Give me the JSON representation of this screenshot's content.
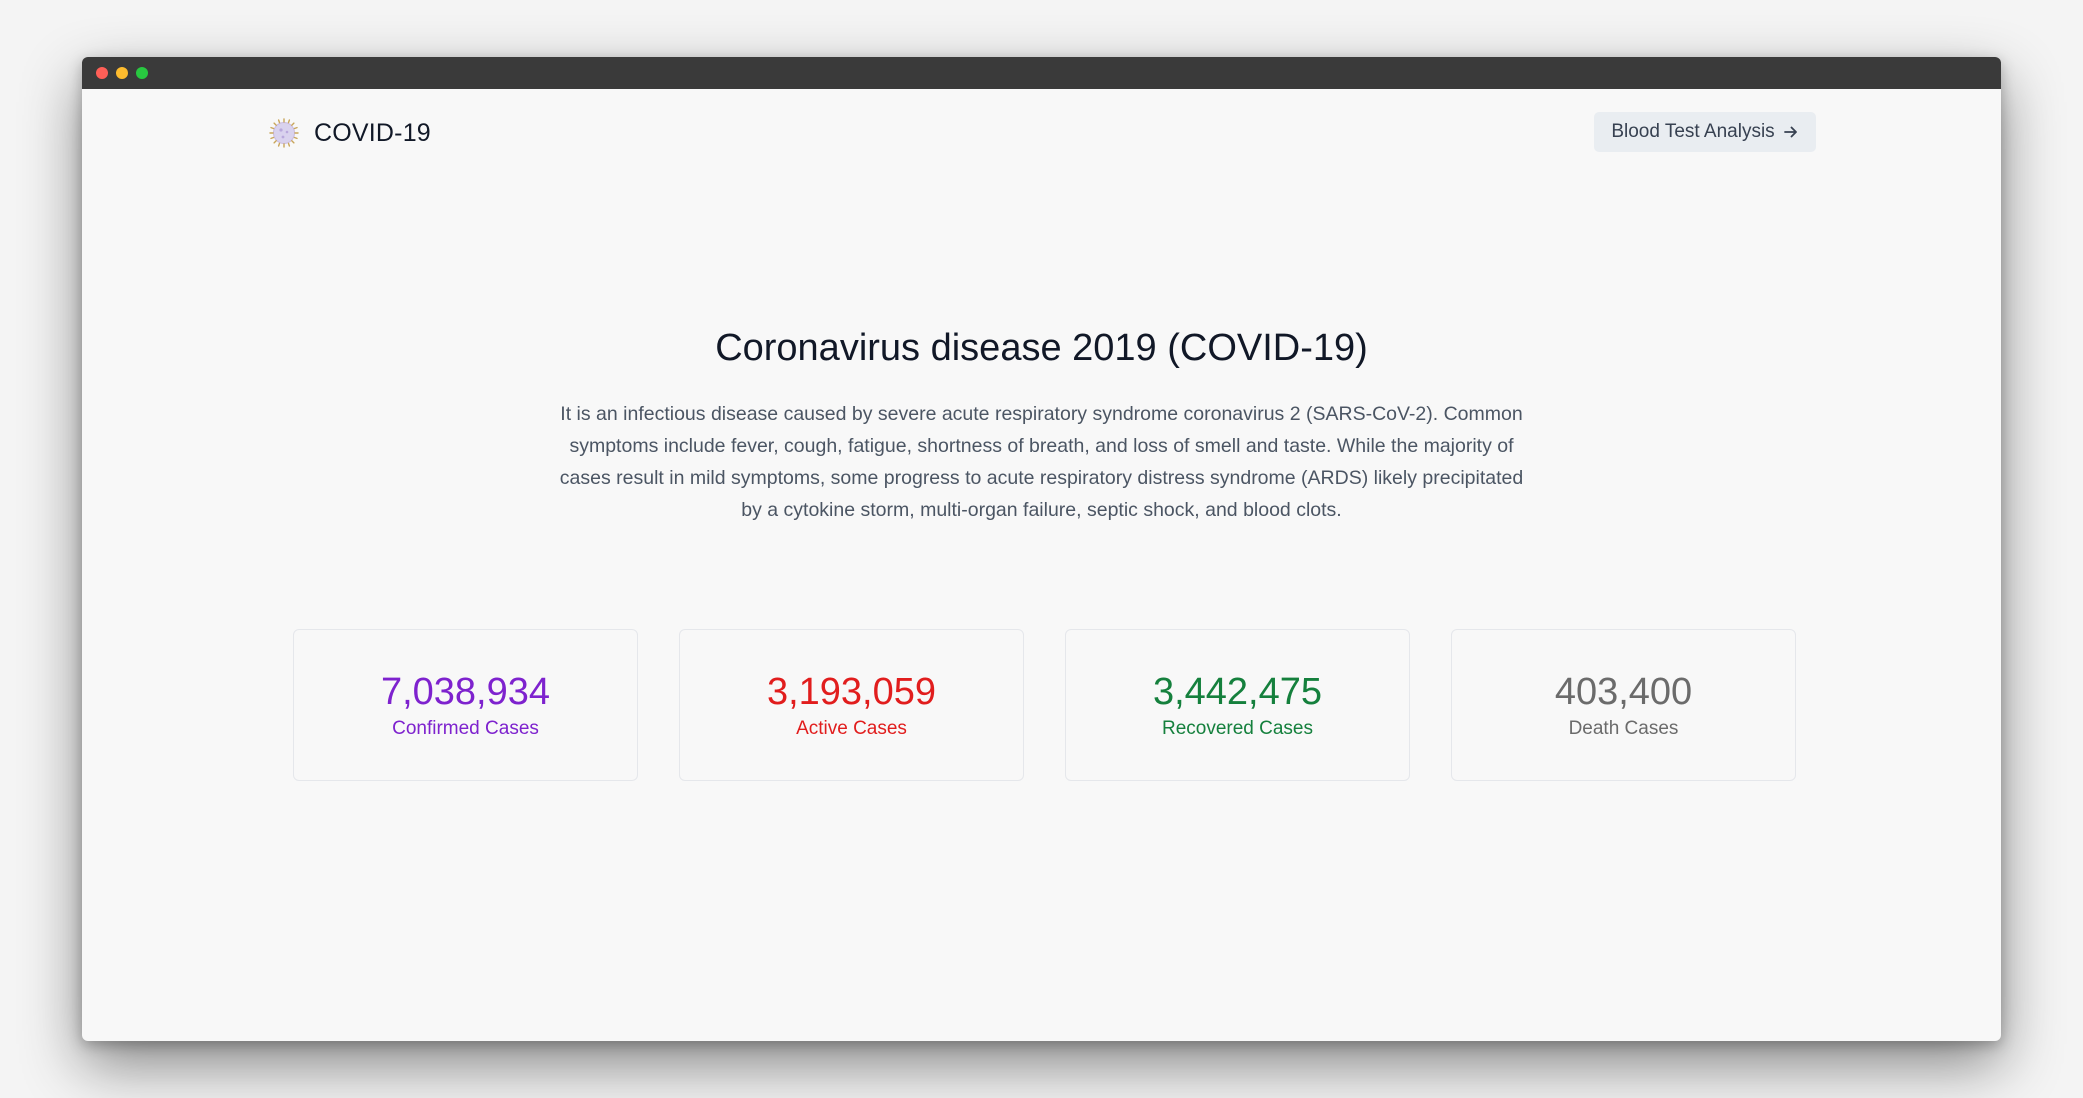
{
  "brand": {
    "name": "COVID-19",
    "icon": "virus-icon"
  },
  "nav": {
    "button_label": "Blood Test Analysis",
    "button_icon": "arrow-right-icon"
  },
  "hero": {
    "title": "Coronavirus disease 2019 (COVID-19)",
    "description": "It is an infectious disease caused by severe acute respiratory syndrome coronavirus 2 (SARS-CoV-2). Common symptoms include fever, cough, fatigue, shortness of breath, and loss of smell and taste. While the majority of cases result in mild symptoms, some progress to acute respiratory distress syndrome (ARDS) likely precipitated by a cytokine storm, multi-organ failure, septic shock, and blood clots."
  },
  "stats": [
    {
      "value": "7,038,934",
      "label": "Confirmed Cases",
      "color": "#7e22ce"
    },
    {
      "value": "3,193,059",
      "label": "Active Cases",
      "color": "#e11d1d"
    },
    {
      "value": "3,442,475",
      "label": "Recovered Cases",
      "color": "#15803d"
    },
    {
      "value": "403,400",
      "label": "Death Cases",
      "color": "#6b6b6b"
    }
  ]
}
